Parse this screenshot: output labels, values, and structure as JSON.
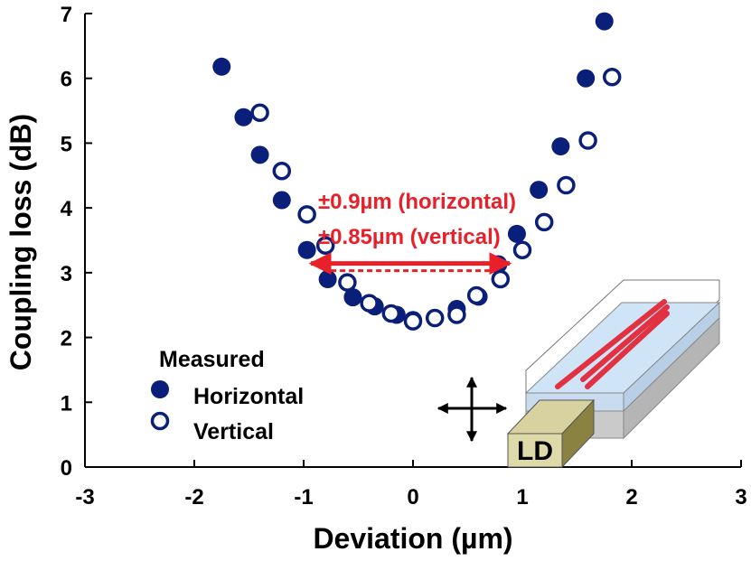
{
  "chart_data": {
    "type": "scatter",
    "xlabel": "Deviation (µm)",
    "ylabel": "Coupling loss (dB)",
    "xlim": [
      -3,
      3
    ],
    "ylim": [
      0,
      7
    ],
    "xticks": [
      "-3",
      "-2",
      "-1",
      "0",
      "1",
      "2",
      "3"
    ],
    "yticks": [
      "0",
      "1",
      "2",
      "3",
      "4",
      "5",
      "6",
      "7"
    ],
    "grid": false,
    "legend": {
      "title": "Measured",
      "position": "bottom-left"
    },
    "series": [
      {
        "name": "Horizontal",
        "marker": "filled-circle",
        "color": "#0a1f7a",
        "x": [
          -1.75,
          -1.55,
          -1.4,
          -1.2,
          -0.97,
          -0.78,
          -0.55,
          -0.35,
          -0.15,
          0.0,
          0.2,
          0.4,
          0.6,
          0.78,
          0.95,
          1.15,
          1.35,
          1.58,
          1.75
        ],
        "y": [
          6.18,
          5.4,
          4.82,
          4.12,
          3.35,
          2.9,
          2.62,
          2.48,
          2.35,
          2.27,
          2.3,
          2.44,
          2.63,
          3.13,
          3.6,
          4.28,
          4.95,
          6.0,
          6.88
        ]
      },
      {
        "name": "Vertical",
        "marker": "open-circle",
        "color": "#0a1f7a",
        "x": [
          -1.4,
          -1.2,
          -0.97,
          -0.8,
          -0.6,
          -0.4,
          -0.2,
          0.0,
          0.2,
          0.4,
          0.58,
          0.8,
          1.0,
          1.2,
          1.4,
          1.6,
          1.82
        ],
        "y": [
          5.47,
          4.57,
          3.9,
          3.42,
          2.85,
          2.53,
          2.37,
          2.25,
          2.3,
          2.35,
          2.65,
          2.9,
          3.35,
          3.78,
          4.35,
          5.04,
          6.02
        ]
      }
    ],
    "annotations": {
      "line1": "±0.9µm (horizontal)",
      "line2": "±0.85µm (vertical)",
      "arrow_x_range": [
        -0.9,
        0.85
      ],
      "arrow_y": 3.1,
      "color": "#e8202a"
    },
    "inset": {
      "label": "LD",
      "icon": "move-arrows-icon"
    }
  }
}
